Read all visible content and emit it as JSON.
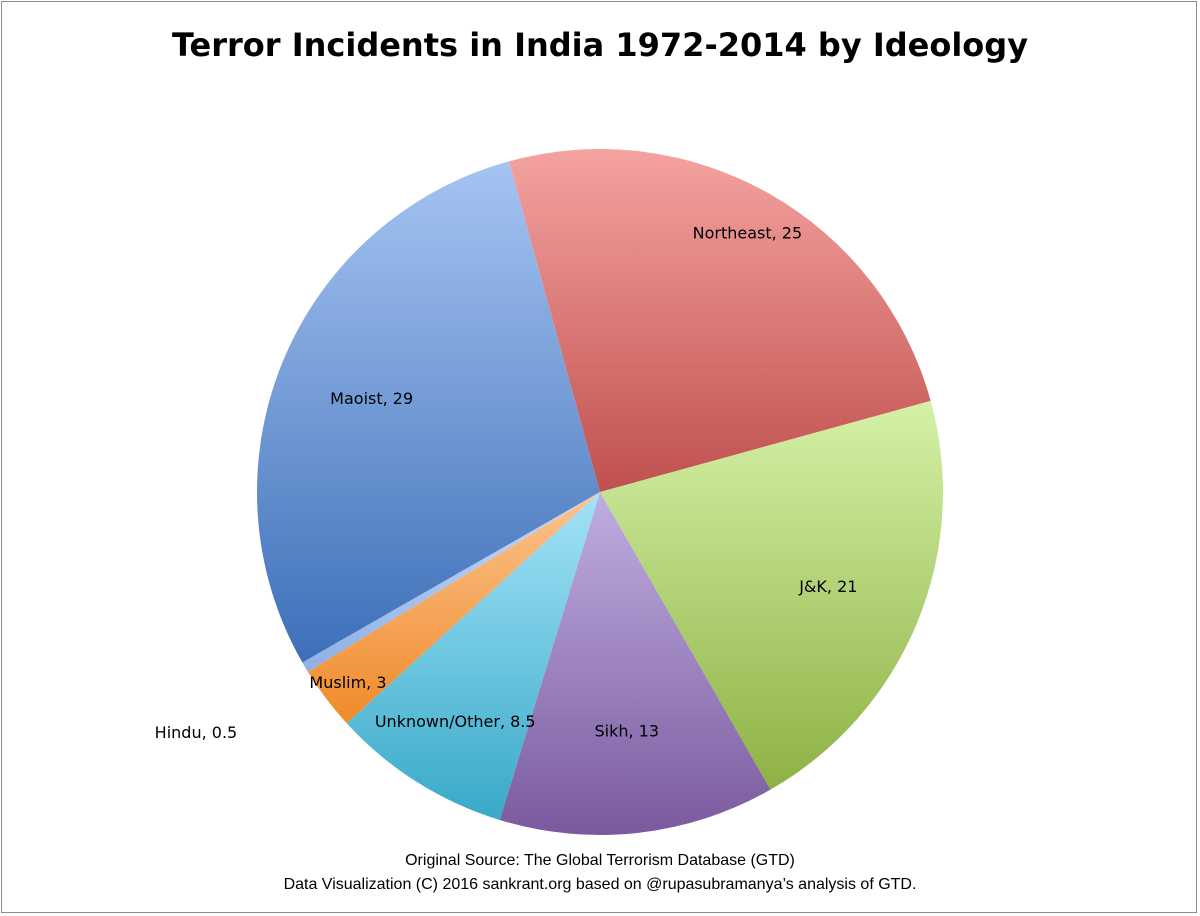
{
  "chart_data": {
    "type": "pie",
    "title": "Terror Incidents in India 1972-2014 by Ideology",
    "slices": [
      {
        "label": "Northeast, 25",
        "name": "Northeast",
        "value": 25,
        "color": "#c0504d",
        "light": "#f4a3a1"
      },
      {
        "label": "J&K, 21",
        "name": "J&K",
        "value": 21,
        "color": "#8db244",
        "light": "#d5f1a7"
      },
      {
        "label": "Sikh, 13",
        "name": "Sikh",
        "value": 13,
        "color": "#7a5a9e",
        "light": "#c0aee0"
      },
      {
        "label": "Unknown/Other, 8.5",
        "name": "Unknown/Other",
        "value": 8.5,
        "color": "#38a9c8",
        "light": "#a3e3f7"
      },
      {
        "label": "Muslim, 3",
        "name": "Muslim",
        "value": 3,
        "color": "#f08a2a",
        "light": "#fbc48e"
      },
      {
        "label": "Hindu, 0.5",
        "name": "Hindu",
        "value": 0.5,
        "color": "#8eb0e6",
        "light": "#c5d8f7"
      },
      {
        "label": "Maoist, 29",
        "name": "Maoist",
        "value": 29,
        "color": "#3d6fb8",
        "light": "#a6c4f2"
      }
    ]
  },
  "footer": {
    "source": "Original Source: The Global Terrorism Database (GTD)",
    "credit": "Data Visualization (C)  2016 sankrant.org based on @rupasubramanya’s analysis of GTD."
  }
}
